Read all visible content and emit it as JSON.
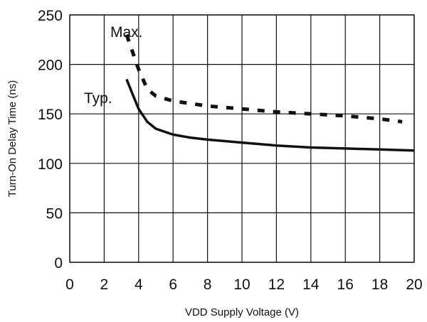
{
  "chart_data": {
    "type": "line",
    "title": "",
    "xlabel": "VDD Supply Voltage (V)",
    "ylabel": "Turn-On Delay Time (ns)",
    "xlim": [
      0,
      20
    ],
    "ylim": [
      0,
      250
    ],
    "x_ticks": [
      0,
      2,
      4,
      6,
      8,
      10,
      12,
      14,
      16,
      18,
      20
    ],
    "y_ticks": [
      0,
      50,
      100,
      150,
      200,
      250
    ],
    "grid": true,
    "series": [
      {
        "name": "Max.",
        "style": "dashed",
        "color": "#111111",
        "points": [
          [
            3.3,
            230
          ],
          [
            3.6,
            215
          ],
          [
            4.0,
            195
          ],
          [
            4.5,
            175
          ],
          [
            5.0,
            168
          ],
          [
            6.0,
            163
          ],
          [
            8.0,
            158
          ],
          [
            10.0,
            155
          ],
          [
            12.0,
            152
          ],
          [
            14.0,
            150
          ],
          [
            16.0,
            148
          ],
          [
            18.0,
            145
          ],
          [
            19.3,
            142
          ]
        ]
      },
      {
        "name": "Typ.",
        "style": "solid",
        "color": "#111111",
        "points": [
          [
            3.3,
            185
          ],
          [
            3.6,
            172
          ],
          [
            4.0,
            155
          ],
          [
            4.5,
            142
          ],
          [
            5.0,
            135
          ],
          [
            6.0,
            129
          ],
          [
            7.0,
            126
          ],
          [
            8.0,
            124
          ],
          [
            10.0,
            121
          ],
          [
            12.0,
            118
          ],
          [
            14.0,
            116
          ],
          [
            16.0,
            115
          ],
          [
            18.0,
            114
          ],
          [
            20.0,
            113
          ]
        ]
      }
    ]
  }
}
